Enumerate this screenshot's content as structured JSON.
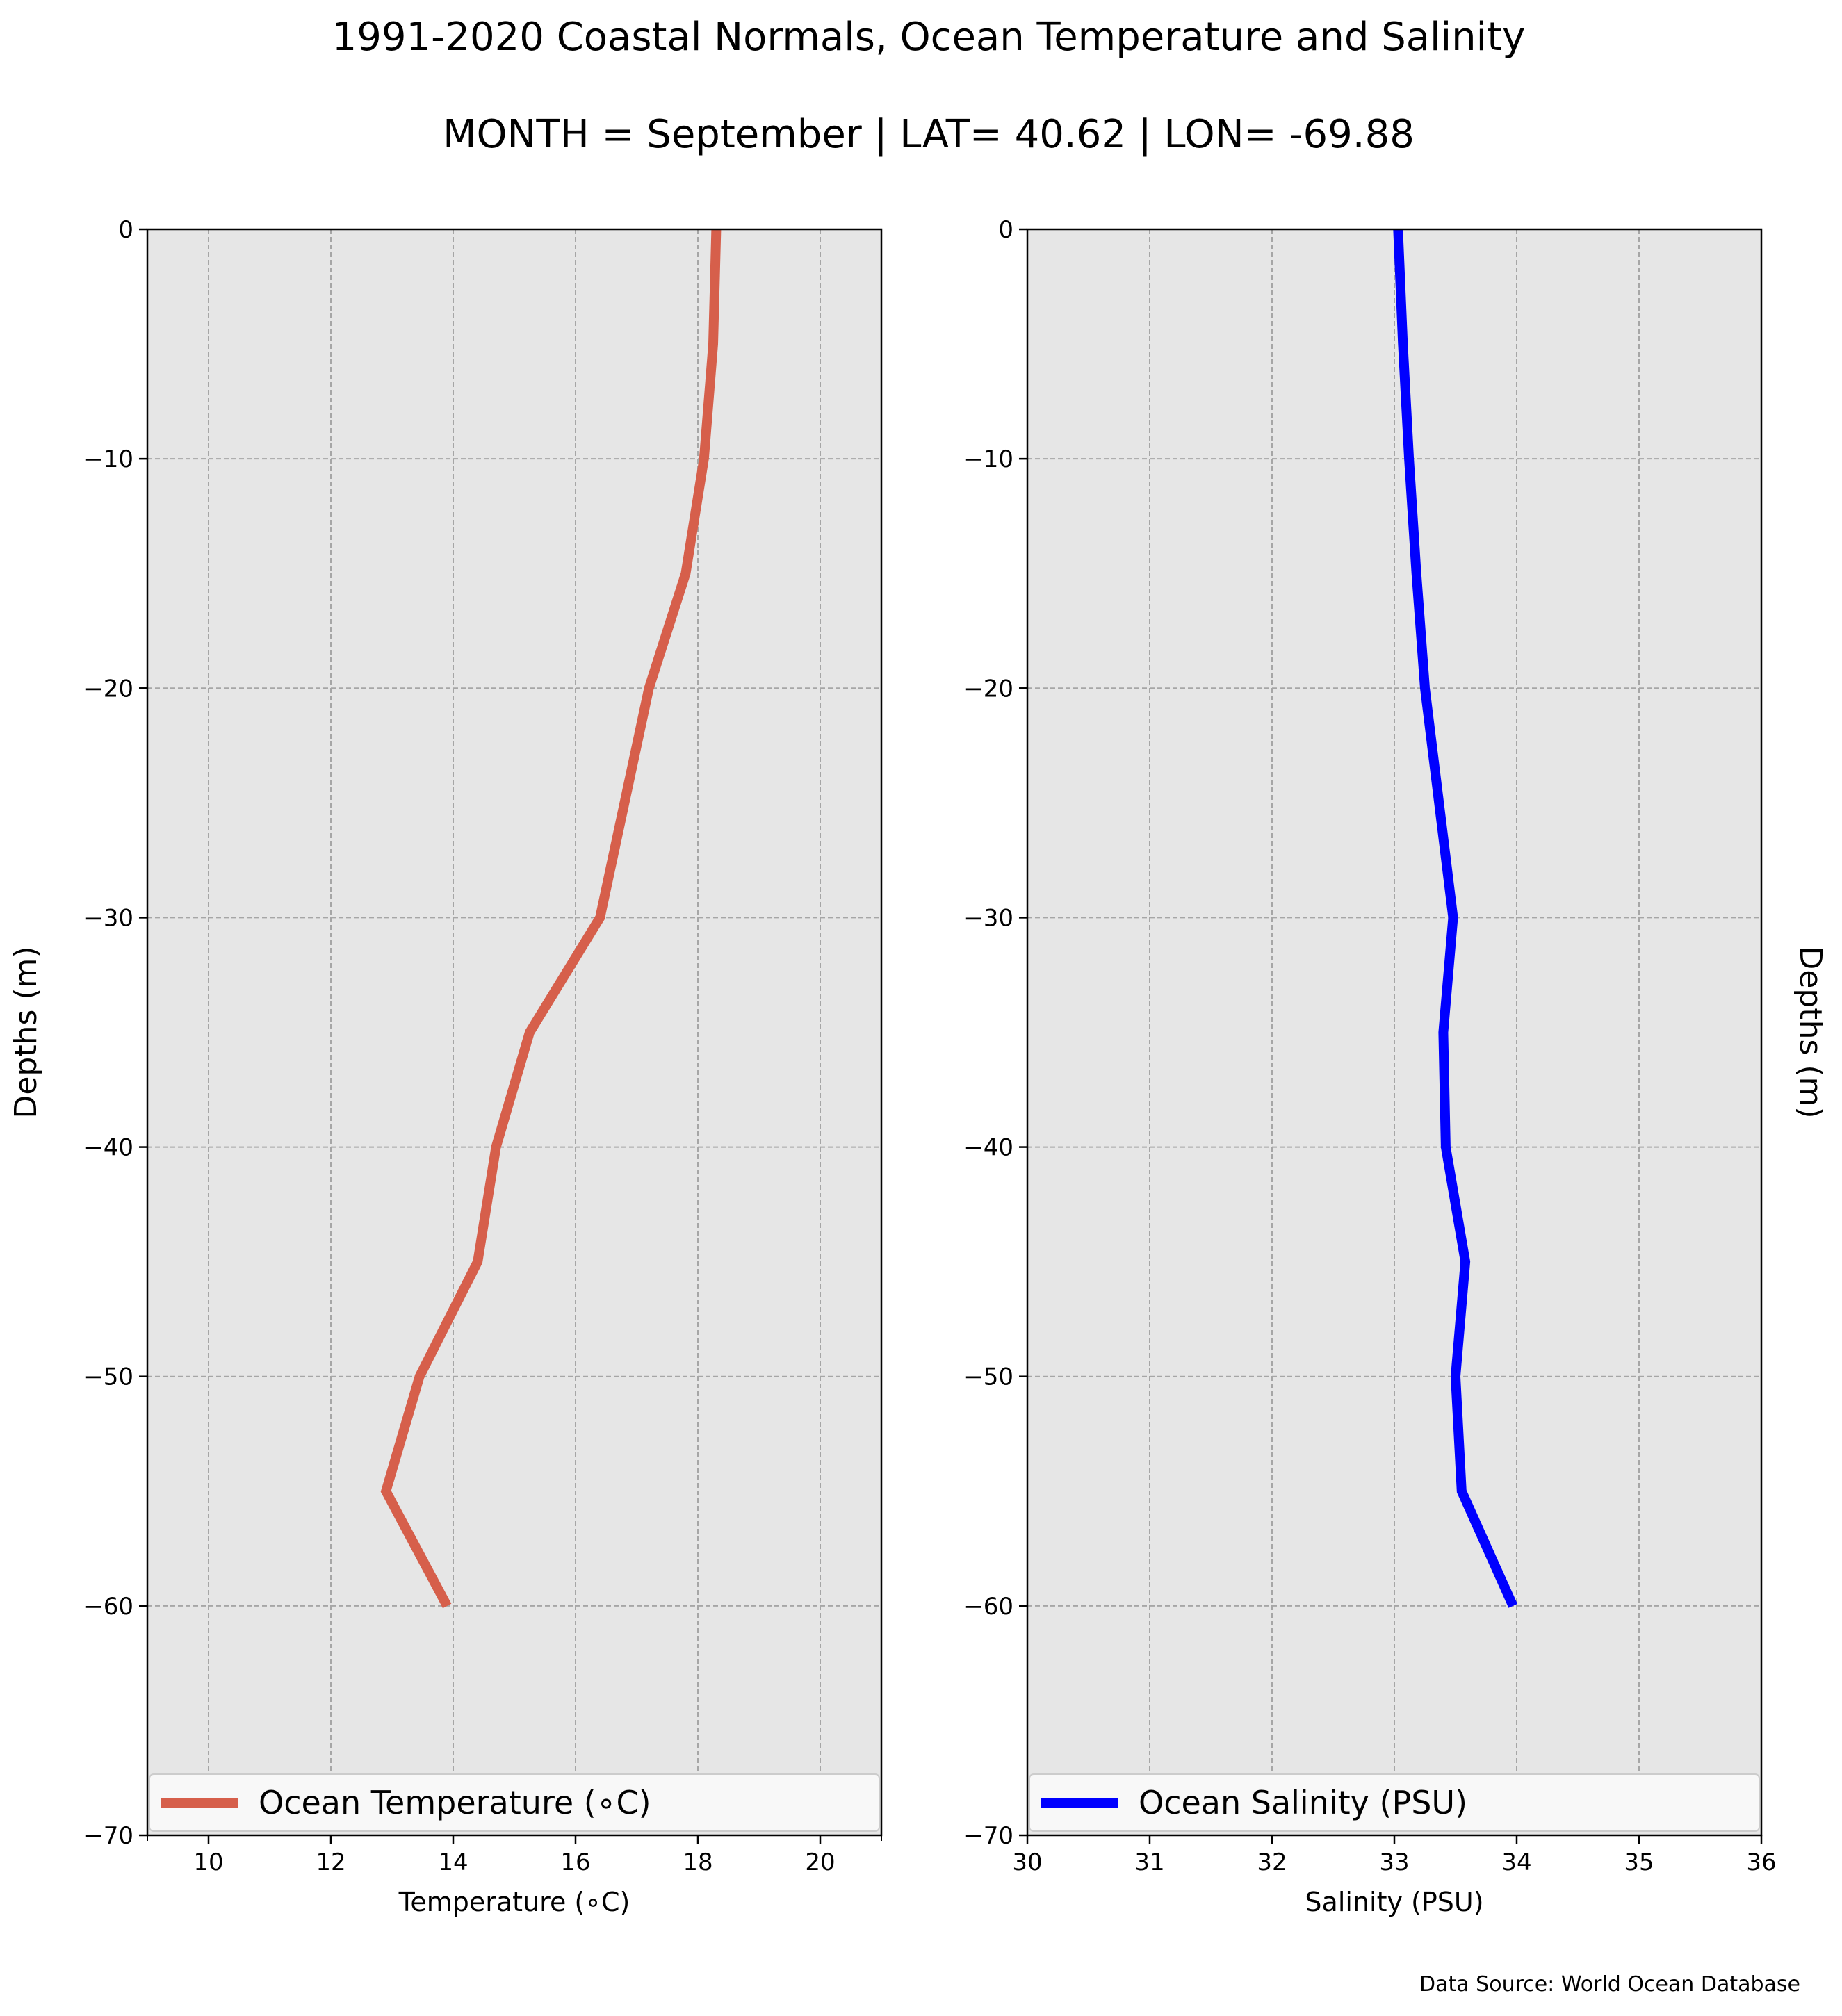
{
  "figure": {
    "title": "1991-2020 Coastal Normals, Ocean Temperature and Salinity",
    "subtitle": "MONTH = September | LAT= 40.62 | LON= -69.88",
    "source": "Data Source: World Ocean Database"
  },
  "chart_data": [
    {
      "type": "line",
      "orientation": "profile",
      "xlabel": "Temperature ($^\\circ$C)",
      "xlabel_display": "Temperature (∘C)",
      "ylabel": "Depths (m)",
      "xlim": [
        9,
        21
      ],
      "ylim": [
        -70,
        0
      ],
      "xticks": [
        10,
        12,
        14,
        16,
        18,
        20
      ],
      "yticks": [
        0,
        -10,
        -20,
        -30,
        -40,
        -50,
        -60,
        -70
      ],
      "grid": true,
      "legend_position": "lower-center",
      "series": [
        {
          "name": "Ocean Temperature (∘C)",
          "color": "#d65f4b",
          "x": [
            18.3,
            18.25,
            18.1,
            17.8,
            17.2,
            16.4,
            15.25,
            14.7,
            14.4,
            13.45,
            12.9,
            13.9
          ],
          "y": [
            0,
            -5,
            -10,
            -15,
            -20,
            -30,
            -35,
            -40,
            -45,
            -50,
            -55,
            -60
          ]
        }
      ]
    },
    {
      "type": "line",
      "orientation": "profile",
      "xlabel": "Salinity (PSU)",
      "ylabel": "Depths (m)",
      "xlim": [
        30,
        36
      ],
      "ylim": [
        -70,
        0
      ],
      "xticks": [
        30,
        31,
        32,
        33,
        34,
        35,
        36
      ],
      "yticks": [
        0,
        -10,
        -20,
        -30,
        -40,
        -50,
        -60,
        -70
      ],
      "grid": true,
      "legend_position": "lower-center",
      "series": [
        {
          "name": "Ocean Salinity (PSU)",
          "color": "#0000ff",
          "x": [
            33.03,
            33.07,
            33.12,
            33.18,
            33.25,
            33.48,
            33.4,
            33.42,
            33.58,
            33.5,
            33.55,
            33.97
          ],
          "y": [
            0,
            -5,
            -10,
            -15,
            -20,
            -30,
            -35,
            -40,
            -45,
            -50,
            -55,
            -60
          ]
        }
      ]
    }
  ]
}
